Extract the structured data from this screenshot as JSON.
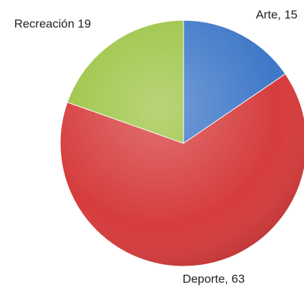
{
  "chart_data": {
    "type": "pie",
    "values": [
      15,
      63,
      19
    ],
    "value_labels": [
      "Arte, 15",
      "Deporte, 63",
      "Recreación 19"
    ],
    "colors": [
      "#3f78c8",
      "#d63c3c",
      "#9cc444"
    ]
  }
}
